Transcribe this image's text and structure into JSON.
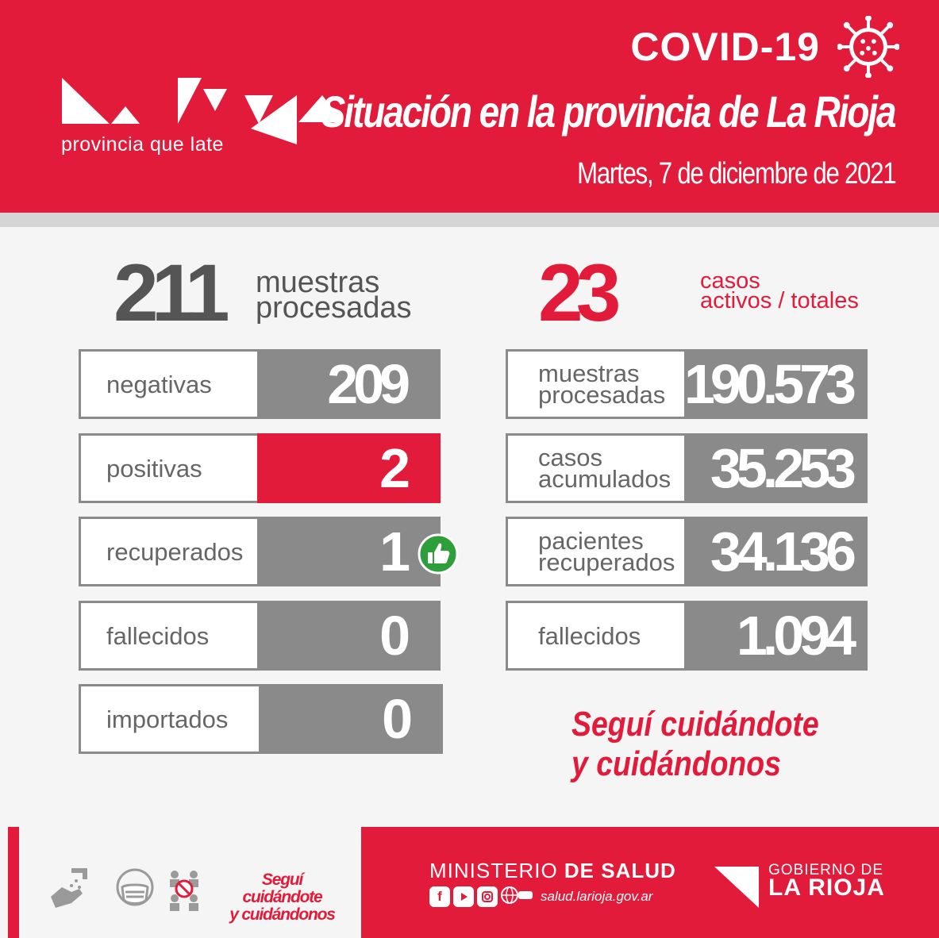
{
  "header": {
    "brand_tagline": "provincia que late",
    "covid_title": "COVID-19",
    "main_title": "Situación en la provincia de La Rioja",
    "date": "Martes, 7 de diciembre de 2021",
    "icons": {
      "logo": "la-rioja-logo",
      "virus": "virus-icon"
    }
  },
  "daily": {
    "samples_value": "211",
    "samples_label_line1": "muestras",
    "samples_label_line2": "procesadas",
    "rows": [
      {
        "label": "negativas",
        "value": "209"
      },
      {
        "label": "positivas",
        "value": "2"
      },
      {
        "label": "recuperados",
        "value": "1"
      },
      {
        "label": "fallecidos",
        "value": "0"
      },
      {
        "label": "importados",
        "value": "0"
      }
    ],
    "recovered_icon": "thumbs-up-icon"
  },
  "totals": {
    "active_value": "23",
    "active_label_line1": "casos",
    "active_label_line2": "activos / totales",
    "rows": [
      {
        "label_line1": "muestras",
        "label_line2": "procesadas",
        "value": "190.573"
      },
      {
        "label_line1": "casos",
        "label_line2": "acumulados",
        "value": "35.253"
      },
      {
        "label_line1": "pacientes",
        "label_line2": "recuperados",
        "value": "34.136"
      },
      {
        "label_line1": "fallecidos",
        "label_line2": "",
        "value": "1.094"
      }
    ]
  },
  "slogan": {
    "line1": "Seguí cuidándote",
    "line2": "y cuidándonos"
  },
  "footer": {
    "slogan_line1": "Seguí cuidándote",
    "slogan_line2": "y cuidándonos",
    "ministry_prefix": "MINISTERIO",
    "ministry_bold": "DE SALUD",
    "website": "salud.larioja.gov.ar",
    "gov_line1": "GOBIERNO DE",
    "gov_line2": "LA RIOJA",
    "icons": [
      "hand-wash-icon",
      "face-mask-icon",
      "no-gathering-icon",
      "facebook-icon",
      "youtube-icon",
      "instagram-icon",
      "web-icon"
    ]
  },
  "colors": {
    "brand_red": "#e31b3b",
    "row_gray": "#8a8a8a",
    "text_gray": "#555555",
    "background": "#f5f5f5"
  }
}
